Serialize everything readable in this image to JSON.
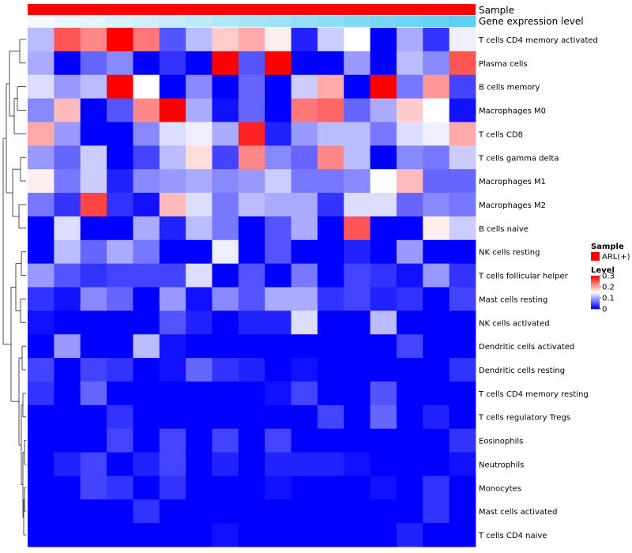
{
  "chart_data": {
    "type": "heatmap",
    "title": "",
    "annotation_tracks": [
      {
        "name": "Sample",
        "value": "ARL(+)",
        "color": "#ff0000"
      },
      {
        "name": "Gene expression level",
        "gradient": [
          "#f2fbfe",
          "#5ccff5"
        ]
      }
    ],
    "rows": [
      "T cells CD4 memory activated",
      "Plasma cells",
      "B cells memory",
      "Macrophages M0",
      "T cells CD8",
      "T cells gamma delta",
      "Macrophages M1",
      "Macrophages M2",
      "B cells naive",
      "NK cells resting",
      "T cells follicular helper",
      "Mast cells resting",
      "NK cells activated",
      "Dendritic cells activated",
      "Dendritic cells resting",
      "T cells CD4 memory resting",
      "T cells regulatory  Tregs",
      "Eosinophils",
      "Neutrophils",
      "Monocytes",
      "Mast cells activated",
      "T cells CD4 naive"
    ],
    "values": [
      [
        0.11,
        0.25,
        0.22,
        0.3,
        0.23,
        0.05,
        0.11,
        0.18,
        0.2,
        0.16,
        0.02,
        0.12,
        0.15,
        0.0,
        0.1,
        0.03,
        0.14
      ],
      [
        0.1,
        0.0,
        0.06,
        0.08,
        0.0,
        0.03,
        0.0,
        0.3,
        0.05,
        0.3,
        0.0,
        0.0,
        0.09,
        0.0,
        0.11,
        0.08,
        0.25
      ],
      [
        0.13,
        0.09,
        0.11,
        0.3,
        0.15,
        0.0,
        0.08,
        0.0,
        0.06,
        0.0,
        0.12,
        0.2,
        0.0,
        0.3,
        0.07,
        0.21,
        0.04
      ],
      [
        0.08,
        0.19,
        0.0,
        0.05,
        0.22,
        0.3,
        0.1,
        0.01,
        0.06,
        0.0,
        0.23,
        0.24,
        0.06,
        0.1,
        0.18,
        0.15,
        0.01
      ],
      [
        0.2,
        0.09,
        0.0,
        0.0,
        0.08,
        0.13,
        0.14,
        0.1,
        0.28,
        0.02,
        0.09,
        0.11,
        0.11,
        0.07,
        0.13,
        0.14,
        0.2
      ],
      [
        0.09,
        0.06,
        0.12,
        0.0,
        0.04,
        0.11,
        0.17,
        0.04,
        0.22,
        0.08,
        0.06,
        0.22,
        0.11,
        0.0,
        0.08,
        0.07,
        0.12
      ],
      [
        0.16,
        0.07,
        0.12,
        0.02,
        0.08,
        0.09,
        0.1,
        0.08,
        0.09,
        0.12,
        0.07,
        0.07,
        0.08,
        0.15,
        0.19,
        0.06,
        0.06
      ],
      [
        0.07,
        0.03,
        0.26,
        0.03,
        0.01,
        0.19,
        0.13,
        0.07,
        0.11,
        0.1,
        0.1,
        0.03,
        0.13,
        0.13,
        0.06,
        0.08,
        0.07
      ],
      [
        0.0,
        0.13,
        0.0,
        0.0,
        0.1,
        0.02,
        0.11,
        0.07,
        0.0,
        0.05,
        0.1,
        0.0,
        0.25,
        0.0,
        0.0,
        0.16,
        0.12
      ],
      [
        0.0,
        0.11,
        0.06,
        0.1,
        0.07,
        0.0,
        0.0,
        0.14,
        0.0,
        0.05,
        0.0,
        0.0,
        0.02,
        0.0,
        0.09,
        0.0,
        0.0
      ],
      [
        0.09,
        0.05,
        0.03,
        0.04,
        0.04,
        0.04,
        0.13,
        0.0,
        0.05,
        0.0,
        0.07,
        0.0,
        0.04,
        0.03,
        0.01,
        0.09,
        0.03
      ],
      [
        0.03,
        0.01,
        0.08,
        0.06,
        0.0,
        0.09,
        0.01,
        0.08,
        0.05,
        0.1,
        0.1,
        0.03,
        0.04,
        0.02,
        0.03,
        0.0,
        0.04
      ],
      [
        0.01,
        0.0,
        0.0,
        0.0,
        0.0,
        0.05,
        0.02,
        0.0,
        0.02,
        0.02,
        0.13,
        0.0,
        0.0,
        0.11,
        0.0,
        0.0,
        0.0
      ],
      [
        0.0,
        0.09,
        0.0,
        0.0,
        0.11,
        0.01,
        0.0,
        0.0,
        0.0,
        0.0,
        0.0,
        0.0,
        0.0,
        0.0,
        0.04,
        0.0,
        0.0
      ],
      [
        0.04,
        0.0,
        0.04,
        0.03,
        0.0,
        0.01,
        0.06,
        0.03,
        0.02,
        0.0,
        0.01,
        0.0,
        0.0,
        0.0,
        0.0,
        0.0,
        0.03
      ],
      [
        0.03,
        0.0,
        0.06,
        0.0,
        0.0,
        0.0,
        0.0,
        0.0,
        0.0,
        0.01,
        0.04,
        0.0,
        0.0,
        0.05,
        0.0,
        0.0,
        0.0
      ],
      [
        0.0,
        0.0,
        0.0,
        0.03,
        0.0,
        0.0,
        0.0,
        0.0,
        0.0,
        0.0,
        0.0,
        0.04,
        0.0,
        0.06,
        0.0,
        0.02,
        0.0
      ],
      [
        0.0,
        0.0,
        0.0,
        0.04,
        0.0,
        0.04,
        0.0,
        0.04,
        0.0,
        0.04,
        0.0,
        0.0,
        0.0,
        0.0,
        0.0,
        0.0,
        0.03
      ],
      [
        0.0,
        0.02,
        0.04,
        0.0,
        0.02,
        0.04,
        0.0,
        0.02,
        0.0,
        0.02,
        0.02,
        0.02,
        0.01,
        0.0,
        0.0,
        0.0,
        0.01
      ],
      [
        0.0,
        0.0,
        0.04,
        0.03,
        0.0,
        0.03,
        0.0,
        0.0,
        0.0,
        0.01,
        0.0,
        0.0,
        0.0,
        0.01,
        0.0,
        0.03,
        0.0
      ],
      [
        0.0,
        0.0,
        0.0,
        0.0,
        0.03,
        0.0,
        0.0,
        0.0,
        0.0,
        0.0,
        0.0,
        0.0,
        0.0,
        0.0,
        0.0,
        0.03,
        0.0
      ],
      [
        0.0,
        0.0,
        0.0,
        0.0,
        0.0,
        0.0,
        0.0,
        0.01,
        0.0,
        0.0,
        0.0,
        0.0,
        0.0,
        0.0,
        0.02,
        0.0,
        0.0
      ]
    ],
    "color_scale": {
      "min": 0,
      "max": 0.3,
      "low": "#0000ff",
      "mid": "#ffffff",
      "high": "#ff0000"
    },
    "legend": {
      "sample_title": "Sample",
      "sample_label": "ARL(+)",
      "level_title": "Level",
      "ticks": [
        "0.3",
        "0.2",
        "0.1",
        "0"
      ],
      "tick_values": [
        0.3,
        0.2,
        0.1,
        0
      ]
    },
    "dendrogram": "rows-clustered, shown at left"
  }
}
